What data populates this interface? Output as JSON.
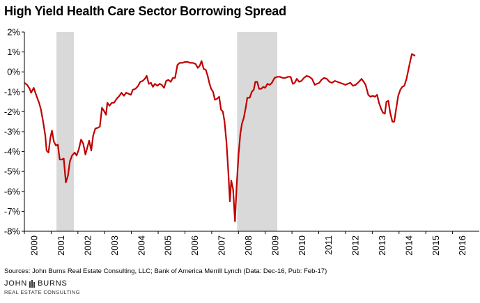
{
  "chart_data": {
    "type": "line",
    "title": "High Yield Health Care Sector Borrowing Spread",
    "xlabel": "",
    "ylabel": "",
    "xlim": [
      2000.0,
      2017.0
    ],
    "ylim": [
      -8,
      2
    ],
    "x_ticks": [
      "2000",
      "2001",
      "2002",
      "2003",
      "2004",
      "2005",
      "2006",
      "2007",
      "2008",
      "2009",
      "2010",
      "2011",
      "2012",
      "2013",
      "2014",
      "2015",
      "2016"
    ],
    "y_ticks": [
      "2%",
      "1%",
      "0%",
      "-1%",
      "-2%",
      "-3%",
      "-4%",
      "-5%",
      "-6%",
      "-7%",
      "-8%"
    ],
    "grid": false,
    "legend": "none",
    "recessions": [
      [
        2001.2,
        2001.85
      ],
      [
        2007.95,
        2009.45
      ]
    ],
    "series": [
      {
        "color": "#c00000",
        "points": [
          [
            2000.0,
            -0.55
          ],
          [
            2000.1,
            -0.65
          ],
          [
            2000.2,
            -0.85
          ],
          [
            2000.25,
            -1.05
          ],
          [
            2000.35,
            -0.8
          ],
          [
            2000.45,
            -1.2
          ],
          [
            2000.55,
            -1.55
          ],
          [
            2000.62,
            -1.9
          ],
          [
            2000.7,
            -2.5
          ],
          [
            2000.78,
            -3.2
          ],
          [
            2000.83,
            -3.95
          ],
          [
            2000.9,
            -4.05
          ],
          [
            2000.97,
            -3.3
          ],
          [
            2001.03,
            -2.95
          ],
          [
            2001.1,
            -3.5
          ],
          [
            2001.18,
            -3.7
          ],
          [
            2001.25,
            -3.65
          ],
          [
            2001.32,
            -4.4
          ],
          [
            2001.4,
            -4.4
          ],
          [
            2001.47,
            -4.35
          ],
          [
            2001.55,
            -5.55
          ],
          [
            2001.63,
            -5.2
          ],
          [
            2001.7,
            -4.5
          ],
          [
            2001.78,
            -4.2
          ],
          [
            2001.88,
            -4.05
          ],
          [
            2001.95,
            -4.2
          ],
          [
            2002.03,
            -3.9
          ],
          [
            2002.12,
            -3.4
          ],
          [
            2002.2,
            -3.6
          ],
          [
            2002.28,
            -4.15
          ],
          [
            2002.35,
            -3.8
          ],
          [
            2002.42,
            -3.45
          ],
          [
            2002.5,
            -3.95
          ],
          [
            2002.57,
            -3.2
          ],
          [
            2002.65,
            -2.85
          ],
          [
            2002.75,
            -2.8
          ],
          [
            2002.82,
            -2.75
          ],
          [
            2002.9,
            -1.8
          ],
          [
            2002.97,
            -1.95
          ],
          [
            2003.05,
            -2.15
          ],
          [
            2003.1,
            -1.55
          ],
          [
            2003.18,
            -1.7
          ],
          [
            2003.27,
            -1.55
          ],
          [
            2003.35,
            -1.55
          ],
          [
            2003.45,
            -1.35
          ],
          [
            2003.55,
            -1.2
          ],
          [
            2003.63,
            -1.05
          ],
          [
            2003.72,
            -1.2
          ],
          [
            2003.8,
            -1.05
          ],
          [
            2003.9,
            -1.1
          ],
          [
            2003.98,
            -1.15
          ],
          [
            2004.05,
            -0.9
          ],
          [
            2004.15,
            -0.85
          ],
          [
            2004.25,
            -0.7
          ],
          [
            2004.33,
            -0.5
          ],
          [
            2004.42,
            -0.45
          ],
          [
            2004.5,
            -0.35
          ],
          [
            2004.57,
            -0.2
          ],
          [
            2004.65,
            -0.6
          ],
          [
            2004.73,
            -0.55
          ],
          [
            2004.8,
            -0.75
          ],
          [
            2004.88,
            -0.6
          ],
          [
            2004.97,
            -0.7
          ],
          [
            2005.05,
            -0.6
          ],
          [
            2005.13,
            -0.65
          ],
          [
            2005.22,
            -0.8
          ],
          [
            2005.3,
            -0.45
          ],
          [
            2005.38,
            -0.4
          ],
          [
            2005.47,
            -0.5
          ],
          [
            2005.55,
            -0.3
          ],
          [
            2005.63,
            -0.3
          ],
          [
            2005.72,
            0.35
          ],
          [
            2005.8,
            0.45
          ],
          [
            2005.9,
            0.45
          ],
          [
            2006.0,
            0.5
          ],
          [
            2006.1,
            0.5
          ],
          [
            2006.2,
            0.45
          ],
          [
            2006.3,
            0.45
          ],
          [
            2006.4,
            0.4
          ],
          [
            2006.48,
            0.2
          ],
          [
            2006.55,
            0.3
          ],
          [
            2006.62,
            0.55
          ],
          [
            2006.7,
            0.15
          ],
          [
            2006.78,
            0.1
          ],
          [
            2006.85,
            -0.2
          ],
          [
            2006.92,
            -0.6
          ],
          [
            2006.98,
            -0.85
          ],
          [
            2007.05,
            -1.0
          ],
          [
            2007.12,
            -1.4
          ],
          [
            2007.2,
            -1.35
          ],
          [
            2007.28,
            -1.25
          ],
          [
            2007.35,
            -1.9
          ],
          [
            2007.42,
            -2.0
          ],
          [
            2007.48,
            -2.5
          ],
          [
            2007.55,
            -3.5
          ],
          [
            2007.62,
            -5.0
          ],
          [
            2007.68,
            -6.5
          ],
          [
            2007.73,
            -5.45
          ],
          [
            2007.8,
            -5.9
          ],
          [
            2007.87,
            -7.5
          ],
          [
            2007.93,
            -5.8
          ],
          [
            2008.0,
            -4.2
          ],
          [
            2008.07,
            -3.1
          ],
          [
            2008.13,
            -2.6
          ],
          [
            2008.2,
            -2.3
          ],
          [
            2008.27,
            -1.8
          ],
          [
            2008.33,
            -1.3
          ],
          [
            2008.42,
            -1.3
          ],
          [
            2008.5,
            -1.0
          ],
          [
            2008.57,
            -0.9
          ],
          [
            2008.63,
            -0.5
          ],
          [
            2008.7,
            -0.5
          ],
          [
            2008.77,
            -0.85
          ],
          [
            2008.85,
            -0.85
          ],
          [
            2008.93,
            -0.75
          ],
          [
            2009.0,
            -0.8
          ],
          [
            2009.08,
            -0.6
          ],
          [
            2009.17,
            -0.65
          ],
          [
            2009.25,
            -0.55
          ],
          [
            2009.35,
            -0.3
          ],
          [
            2009.45,
            -0.25
          ],
          [
            2009.55,
            -0.25
          ],
          [
            2009.65,
            -0.3
          ],
          [
            2009.75,
            -0.3
          ],
          [
            2009.85,
            -0.25
          ],
          [
            2009.95,
            -0.25
          ],
          [
            2010.03,
            -0.6
          ],
          [
            2010.1,
            -0.55
          ],
          [
            2010.18,
            -0.35
          ],
          [
            2010.27,
            -0.5
          ],
          [
            2010.35,
            -0.45
          ],
          [
            2010.45,
            -0.3
          ],
          [
            2010.55,
            -0.2
          ],
          [
            2010.65,
            -0.25
          ],
          [
            2010.75,
            -0.35
          ],
          [
            2010.85,
            -0.65
          ],
          [
            2010.93,
            -0.6
          ],
          [
            2011.02,
            -0.55
          ],
          [
            2011.1,
            -0.4
          ],
          [
            2011.2,
            -0.3
          ],
          [
            2011.3,
            -0.35
          ],
          [
            2011.4,
            -0.5
          ],
          [
            2011.5,
            -0.55
          ],
          [
            2011.6,
            -0.45
          ],
          [
            2011.7,
            -0.5
          ],
          [
            2011.8,
            -0.55
          ],
          [
            2011.9,
            -0.6
          ],
          [
            2012.0,
            -0.65
          ],
          [
            2012.08,
            -0.6
          ],
          [
            2012.18,
            -0.55
          ],
          [
            2012.28,
            -0.7
          ],
          [
            2012.38,
            -0.65
          ],
          [
            2012.5,
            -0.5
          ],
          [
            2012.6,
            -0.35
          ],
          [
            2012.68,
            -0.5
          ],
          [
            2012.75,
            -0.65
          ],
          [
            2012.85,
            -1.15
          ],
          [
            2012.93,
            -1.25
          ],
          [
            2013.02,
            -1.2
          ],
          [
            2013.1,
            -1.25
          ],
          [
            2013.18,
            -1.15
          ],
          [
            2013.25,
            -1.55
          ],
          [
            2013.33,
            -1.85
          ],
          [
            2013.4,
            -2.05
          ],
          [
            2013.47,
            -2.1
          ],
          [
            2013.53,
            -1.5
          ],
          [
            2013.6,
            -1.45
          ],
          [
            2013.67,
            -2.05
          ],
          [
            2013.75,
            -2.5
          ],
          [
            2013.82,
            -2.5
          ],
          [
            2013.9,
            -1.8
          ],
          [
            2013.97,
            -1.2
          ],
          [
            2014.05,
            -0.9
          ],
          [
            2014.12,
            -0.75
          ],
          [
            2014.2,
            -0.7
          ],
          [
            2014.28,
            -0.35
          ],
          [
            2014.35,
            0.1
          ],
          [
            2014.42,
            0.55
          ],
          [
            2014.48,
            0.9
          ],
          [
            2014.55,
            0.85
          ],
          [
            2014.6,
            0.8
          ]
        ]
      }
    ]
  },
  "sources_text": "Sources: John Burns Real Estate Consulting, LLC; Bank of America Merrill Lynch (Data: Dec-16, Pub: Feb-17)",
  "logo": {
    "line1_left": "JOHN",
    "line1_right": "BURNS",
    "line2": "REAL ESTATE CONSULTING"
  }
}
